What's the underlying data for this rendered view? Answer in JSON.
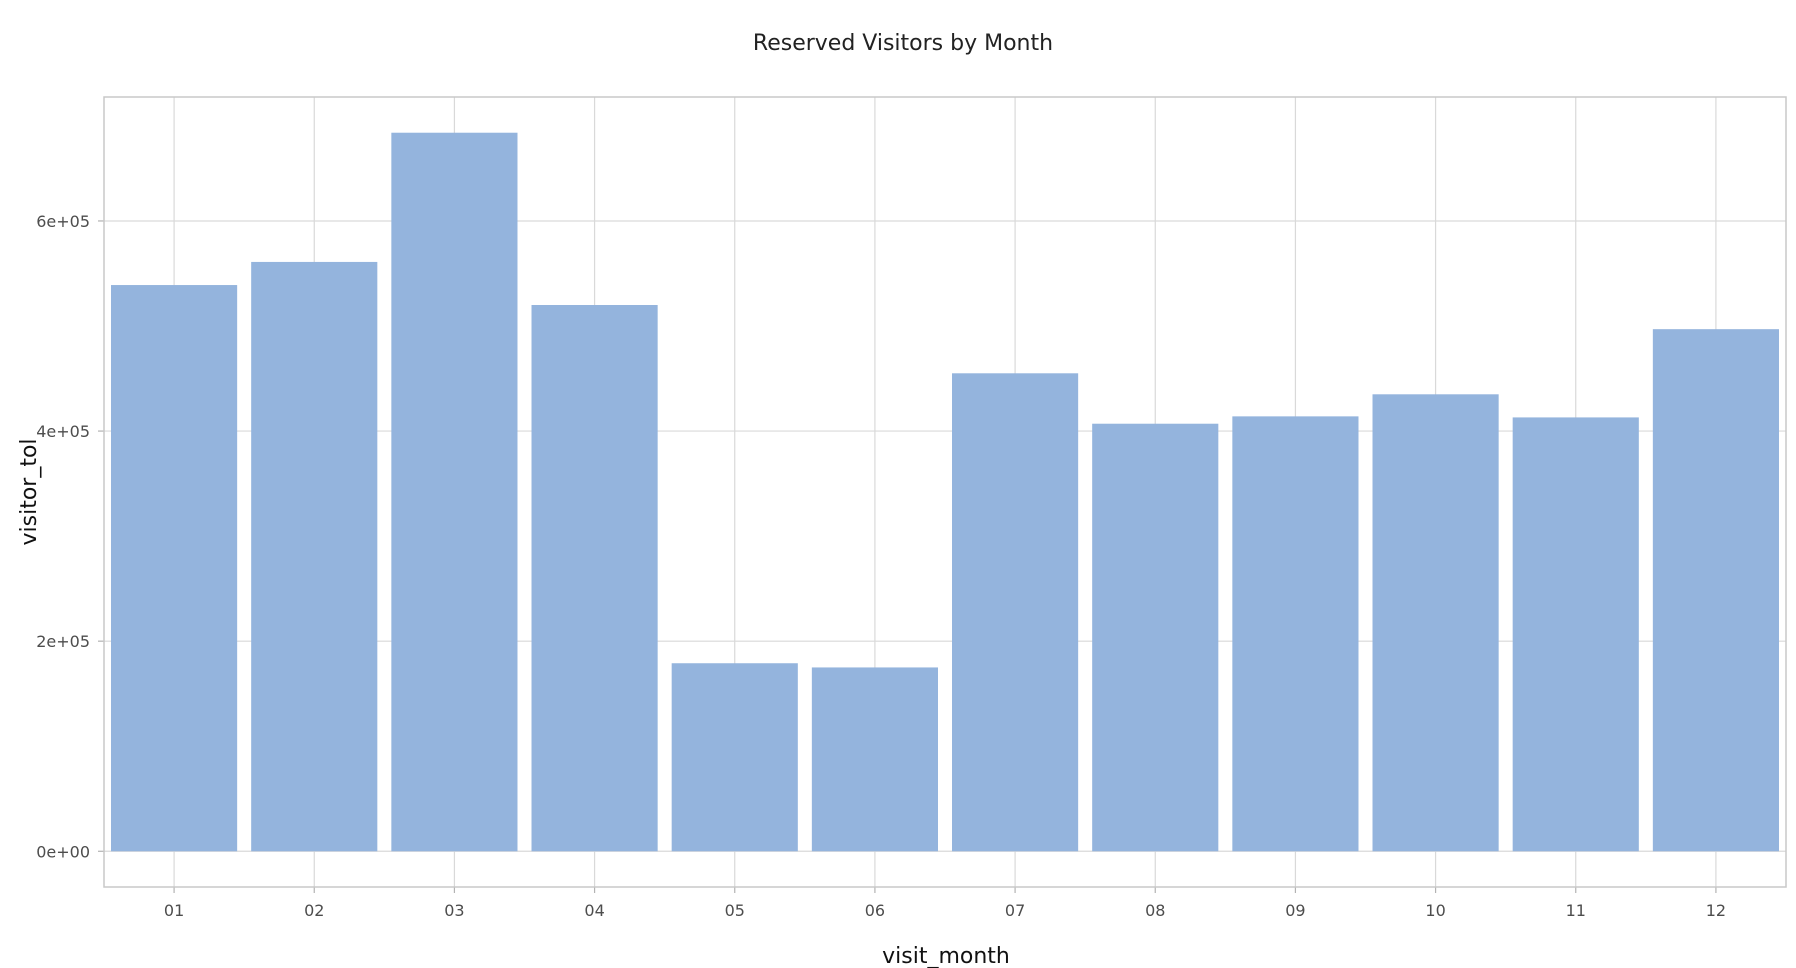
{
  "chart_data": {
    "type": "bar",
    "title": "Reserved Visitors by Month",
    "xlabel": "visit_month",
    "ylabel": "visitor_tol",
    "categories": [
      "01",
      "02",
      "03",
      "04",
      "05",
      "06",
      "07",
      "08",
      "09",
      "10",
      "11",
      "12"
    ],
    "values": [
      539000,
      561000,
      684000,
      520000,
      179000,
      175000,
      455000,
      407000,
      414000,
      435000,
      413000,
      497000
    ],
    "y_ticks": [
      0,
      200000,
      400000,
      600000
    ],
    "y_tick_labels": [
      "0e+00",
      "2e+05",
      "4e+05",
      "6e+05"
    ],
    "ylim": [
      -34000,
      718000
    ],
    "grid": true,
    "bar_color": "#94b4dd"
  }
}
